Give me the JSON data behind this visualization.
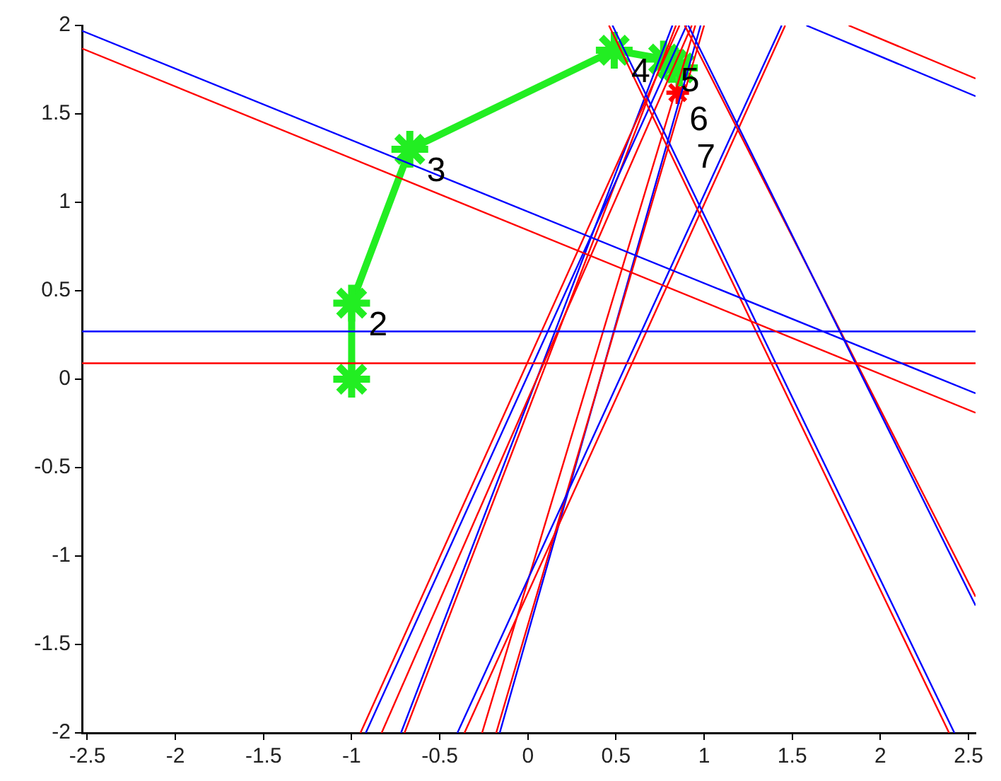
{
  "chart_data": {
    "type": "line",
    "xlim": [
      -2.53,
      2.54
    ],
    "ylim": [
      -2,
      2
    ],
    "xticks": [
      -2.5,
      -2,
      -1.5,
      -1,
      -0.5,
      0,
      0.5,
      1,
      1.5,
      2,
      2.5
    ],
    "yticks": [
      -2,
      -1.5,
      -1,
      -0.5,
      0,
      0.5,
      1,
      1.5,
      2
    ],
    "grid": false,
    "legend": false,
    "marker": "none",
    "line_style": "solid",
    "series": [
      {
        "color": "#0000ff",
        "x": [
          -2.53,
          2.54
        ],
        "values": [
          1.97,
          -0.08
        ]
      },
      {
        "color": "#ff0000",
        "x": [
          -2.53,
          2.54
        ],
        "values": [
          1.87,
          -0.19
        ]
      },
      {
        "color": "#0000ff",
        "x": [
          -2.53,
          2.54
        ],
        "values": [
          0.27,
          0.27
        ]
      },
      {
        "color": "#ff0000",
        "x": [
          -2.53,
          2.54
        ],
        "values": [
          0.09,
          0.09
        ]
      },
      {
        "color": "#0000ff",
        "x": [
          1.58,
          2.54
        ],
        "values": [
          2,
          1.6
        ]
      },
      {
        "color": "#ff0000",
        "x": [
          1.82,
          2.54
        ],
        "values": [
          2,
          1.7
        ]
      },
      {
        "color": "#0000ff",
        "x": [
          0.48,
          2.42
        ],
        "values": [
          2,
          -2
        ]
      },
      {
        "color": "#ff0000",
        "x": [
          0.46,
          2.39
        ],
        "values": [
          2,
          -2
        ]
      },
      {
        "color": "#0000ff",
        "x": [
          0.91,
          2.54
        ],
        "values": [
          2,
          -1.28
        ]
      },
      {
        "color": "#ff0000",
        "x": [
          0.89,
          2.54
        ],
        "values": [
          2,
          -1.23
        ]
      },
      {
        "color": "#0000ff",
        "x": [
          -0.4,
          1.44
        ],
        "values": [
          -2,
          2
        ]
      },
      {
        "color": "#ff0000",
        "x": [
          -0.36,
          1.46
        ],
        "values": [
          -2,
          2
        ]
      },
      {
        "color": "#ff0000",
        "x": [
          -0.95,
          0.86
        ],
        "values": [
          -2,
          2
        ]
      },
      {
        "color": "#0000ff",
        "x": [
          -0.92,
          0.9
        ],
        "values": [
          -2,
          2
        ]
      },
      {
        "color": "#ff0000",
        "x": [
          -0.83,
          0.93
        ],
        "values": [
          -2,
          2
        ]
      },
      {
        "color": "#0000ff",
        "x": [
          -0.72,
          0.82
        ],
        "values": [
          -2,
          2
        ]
      },
      {
        "color": "#ff0000",
        "x": [
          -0.7,
          0.84
        ],
        "values": [
          -2,
          2
        ]
      },
      {
        "color": "#ff0000",
        "x": [
          -0.26,
          0.95
        ],
        "values": [
          -2,
          2
        ]
      },
      {
        "color": "#ff0000",
        "x": [
          -0.18,
          1.0
        ],
        "values": [
          -2,
          2
        ]
      },
      {
        "color": "#0000ff",
        "x": [
          -0.16,
          0.98
        ],
        "values": [
          -2,
          2
        ]
      },
      {
        "color": "#22ee22",
        "marker": "cross",
        "x": [
          -1,
          -1,
          -0.67,
          0.49,
          0.77,
          0.82,
          0.86
        ],
        "values": [
          0,
          0.43,
          1.3,
          1.86,
          1.81,
          1.78,
          1.76
        ]
      },
      {
        "type": "scatter",
        "marker": "cross",
        "color": "#ff0000",
        "x": [
          0.85
        ],
        "values": [
          1.62
        ]
      }
    ],
    "annotations": [
      {
        "text": "2",
        "x": -1,
        "y": 0.43
      },
      {
        "text": "3",
        "x": -0.67,
        "y": 1.3
      },
      {
        "text": "4",
        "x": 0.49,
        "y": 1.86
      },
      {
        "text": "5",
        "x": 0.77,
        "y": 1.81
      },
      {
        "text": "6",
        "x": 0.82,
        "y": 1.78
      },
      {
        "text": "7",
        "x": 0.86,
        "y": 1.76
      }
    ]
  }
}
